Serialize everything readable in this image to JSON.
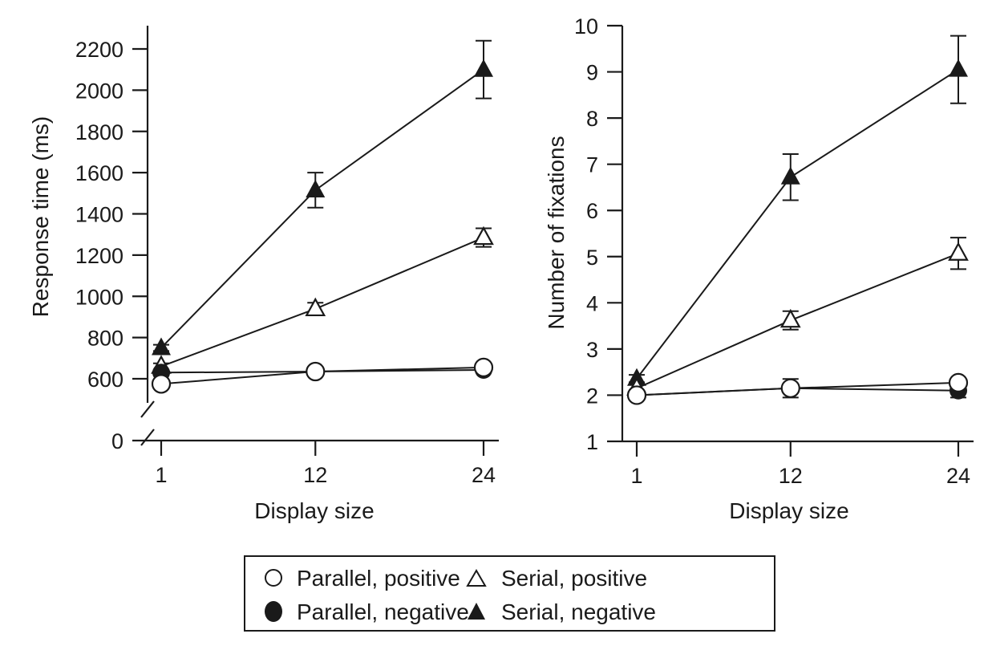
{
  "chart_data": [
    {
      "type": "line",
      "panel": "left",
      "title": "",
      "xlabel": "Display size",
      "ylabel": "Response time (ms)",
      "x": [
        1,
        12,
        24
      ],
      "x_ticks": [
        "1",
        "12",
        "24"
      ],
      "y_ticks": [
        "0",
        "600",
        "800",
        "1000",
        "1200",
        "1400",
        "1600",
        "1800",
        "2000",
        "2200"
      ],
      "y_tick_values": [
        0,
        600,
        800,
        1000,
        1200,
        1400,
        1600,
        1800,
        2000,
        2200
      ],
      "ylim": [
        500,
        2300
      ],
      "axis_break": true,
      "grid": false,
      "series": [
        {
          "name": "Parallel, positive",
          "marker": "circle-open",
          "values": [
            575,
            635,
            655
          ],
          "errors": [
            0,
            0,
            0
          ]
        },
        {
          "name": "Parallel, negative",
          "marker": "circle-filled",
          "values": [
            630,
            635,
            643
          ],
          "errors": [
            0,
            0,
            0
          ]
        },
        {
          "name": "Serial, positive",
          "marker": "triangle-open",
          "values": [
            660,
            939,
            1285
          ],
          "errors": [
            15,
            30,
            45
          ]
        },
        {
          "name": "Serial, negative",
          "marker": "triangle-filled",
          "values": [
            750,
            1515,
            2100
          ],
          "errors": [
            15,
            85,
            140
          ]
        }
      ]
    },
    {
      "type": "line",
      "panel": "right",
      "title": "",
      "xlabel": "Display size",
      "ylabel": "Number of fixations",
      "x": [
        1,
        12,
        24
      ],
      "x_ticks": [
        "1",
        "12",
        "24"
      ],
      "y_ticks": [
        "1",
        "2",
        "3",
        "4",
        "5",
        "6",
        "7",
        "8",
        "9",
        "10"
      ],
      "y_tick_values": [
        1,
        2,
        3,
        4,
        5,
        6,
        7,
        8,
        9,
        10
      ],
      "ylim": [
        1,
        10
      ],
      "axis_break": false,
      "grid": false,
      "series": [
        {
          "name": "Parallel, positive",
          "marker": "circle-open",
          "values": [
            2.0,
            2.15,
            2.27
          ],
          "errors": [
            0,
            0,
            0
          ]
        },
        {
          "name": "Parallel, negative",
          "marker": "circle-filled",
          "values": [
            2.0,
            2.15,
            2.1
          ],
          "errors": [
            0,
            0.2,
            0.15
          ]
        },
        {
          "name": "Serial, positive",
          "marker": "triangle-open",
          "values": [
            2.15,
            3.62,
            5.07
          ],
          "errors": [
            0,
            0.2,
            0.34
          ]
        },
        {
          "name": "Serial, negative",
          "marker": "triangle-filled",
          "values": [
            2.36,
            6.72,
            9.05
          ],
          "errors": [
            0.08,
            0.5,
            0.73
          ]
        }
      ]
    }
  ],
  "legend": {
    "placement": "bottom-center",
    "entries": [
      {
        "label": "Parallel, positive",
        "marker": "circle-open"
      },
      {
        "label": "Serial, positive",
        "marker": "triangle-open"
      },
      {
        "label": "Parallel, negative",
        "marker": "circle-filled"
      },
      {
        "label": "Serial, negative",
        "marker": "triangle-filled"
      }
    ]
  }
}
